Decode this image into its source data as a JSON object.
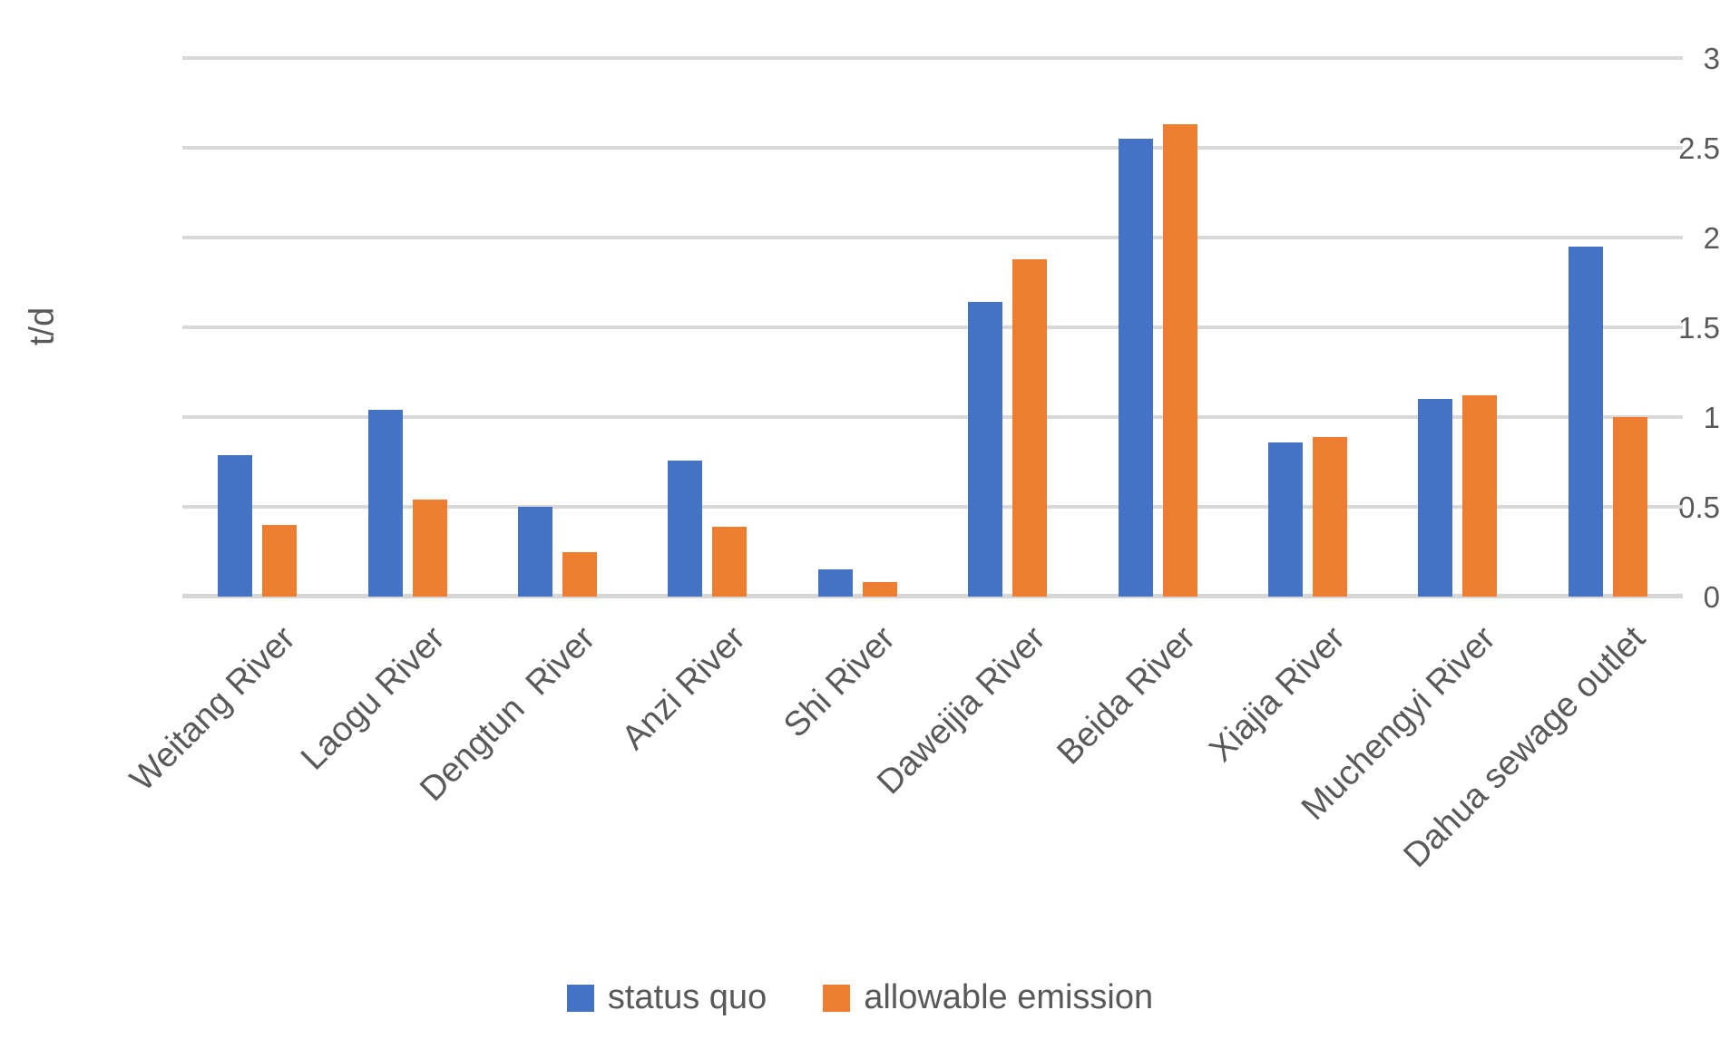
{
  "figure": {
    "background": "#ffffff"
  },
  "y_axis": {
    "title": "t/d"
  },
  "colors": {
    "series_blue": "#4472C4",
    "series_orange": "#ED7D31",
    "gridline": "#D9D9D9",
    "text": "#595959"
  },
  "legend": {
    "items": [
      {
        "label": "status quo",
        "color": "#4472C4"
      },
      {
        "label": "allowable emission",
        "color": "#ED7D31"
      }
    ]
  },
  "chart_data": {
    "type": "bar",
    "categories": [
      "Weitang River",
      "Laogu River",
      "Dengtun  River",
      "Anzi River",
      "Shi River",
      "Daweijia River",
      "Beida River",
      "Xiajia River",
      "Muchengyi River",
      "Dahua sewage outlet"
    ],
    "series": [
      {
        "name": "status quo",
        "color": "#4472C4",
        "values": [
          0.79,
          1.04,
          0.5,
          0.76,
          0.15,
          1.64,
          2.55,
          0.86,
          1.1,
          1.95
        ]
      },
      {
        "name": "allowable emission",
        "color": "#ED7D31",
        "values": [
          0.4,
          0.54,
          0.25,
          0.39,
          0.08,
          1.88,
          2.63,
          0.89,
          1.12,
          1.0
        ]
      }
    ],
    "title": "",
    "xlabel": "",
    "ylabel": "t/d",
    "ylim": [
      0,
      3
    ],
    "yticks": [
      0,
      0.5,
      1,
      1.5,
      2,
      2.5,
      3
    ],
    "grid": true,
    "legend_position": "bottom"
  }
}
